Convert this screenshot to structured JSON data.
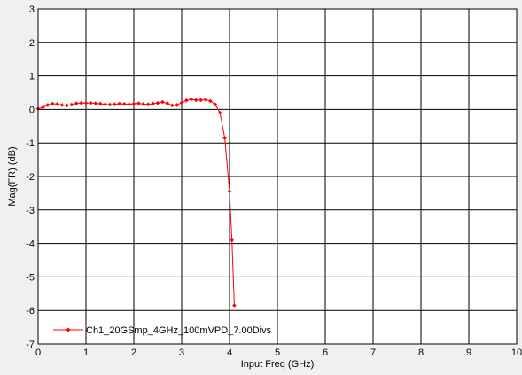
{
  "chart_data": {
    "type": "line",
    "title": "",
    "xlabel": "Input Freq (GHz)",
    "ylabel": "Mag(FR) (dB)",
    "xlim": [
      0,
      10
    ],
    "ylim": [
      -7,
      3
    ],
    "x_ticks": [
      0,
      1,
      2,
      3,
      4,
      5,
      6,
      7,
      8,
      9,
      10
    ],
    "y_ticks": [
      3,
      2,
      1,
      0,
      -1,
      -2,
      -3,
      -4,
      -5,
      -6,
      -7
    ],
    "grid": true,
    "legend_position": "bottom-left",
    "series": [
      {
        "name": "Ch1_20GSmp_4GHz_100mVPD_7.00Divs",
        "color": "#ff0000",
        "marker": "diamond",
        "x": [
          0.0,
          0.1,
          0.2,
          0.3,
          0.4,
          0.5,
          0.6,
          0.7,
          0.8,
          0.9,
          1.0,
          1.1,
          1.2,
          1.3,
          1.4,
          1.5,
          1.6,
          1.7,
          1.8,
          1.9,
          2.0,
          2.1,
          2.2,
          2.3,
          2.4,
          2.5,
          2.6,
          2.7,
          2.8,
          2.9,
          3.0,
          3.1,
          3.2,
          3.3,
          3.4,
          3.5,
          3.6,
          3.7,
          3.8,
          3.9,
          4.0,
          4.05,
          4.1
        ],
        "y": [
          0.02,
          0.06,
          0.13,
          0.17,
          0.16,
          0.13,
          0.12,
          0.14,
          0.18,
          0.19,
          0.19,
          0.19,
          0.18,
          0.17,
          0.15,
          0.14,
          0.15,
          0.17,
          0.16,
          0.15,
          0.17,
          0.18,
          0.16,
          0.15,
          0.17,
          0.19,
          0.22,
          0.18,
          0.12,
          0.13,
          0.2,
          0.27,
          0.3,
          0.28,
          0.28,
          0.29,
          0.25,
          0.15,
          -0.1,
          -0.85,
          -2.45,
          -3.9,
          -5.85
        ]
      }
    ]
  }
}
